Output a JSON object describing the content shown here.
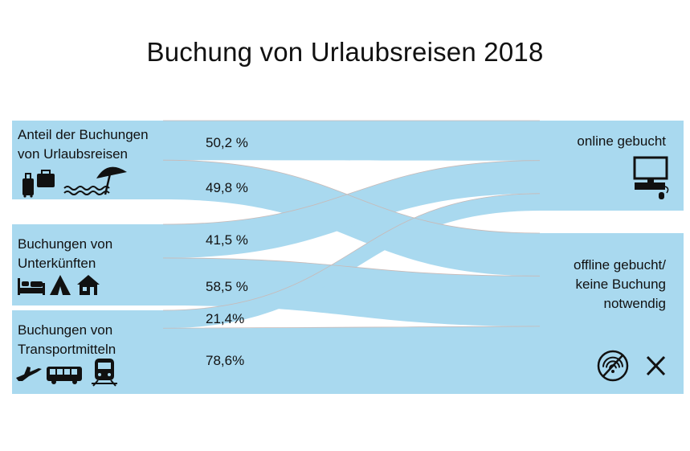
{
  "title": "Buchung von Urlaubsreisen 2018",
  "colors": {
    "flow": "#a9d9ef",
    "seam": "#c9b9b6",
    "text": "#111111"
  },
  "left_nodes": [
    {
      "id": "urlaub",
      "label_lines": [
        "Anteil der Buchungen",
        "von Urlaubsreisen"
      ],
      "icons": [
        "suitcase-icon",
        "luggage-icon",
        "waves-icon",
        "beach-umbrella-icon"
      ]
    },
    {
      "id": "unterkunft",
      "label_lines": [
        "Buchungen von",
        "Unterkünften"
      ],
      "icons": [
        "bed-icon",
        "tent-icon",
        "house-icon"
      ]
    },
    {
      "id": "transport",
      "label_lines": [
        "Buchungen von",
        "Transportmitteln"
      ],
      "icons": [
        "airplane-icon",
        "bus-icon",
        "train-icon"
      ]
    }
  ],
  "right_nodes": [
    {
      "id": "online",
      "label_lines": [
        "online gebucht"
      ],
      "icons": [
        "computer-icon"
      ]
    },
    {
      "id": "offline",
      "label_lines": [
        "offline gebucht/",
        "keine Buchung",
        "notwendig"
      ],
      "icons": [
        "no-wifi-icon",
        "cross-icon"
      ]
    }
  ],
  "flows": [
    {
      "source": "urlaub",
      "target": "online",
      "value": 50.2,
      "label": "50,2 %"
    },
    {
      "source": "urlaub",
      "target": "offline",
      "value": 49.8,
      "label": "49,8 %"
    },
    {
      "source": "unterkunft",
      "target": "online",
      "value": 41.5,
      "label": "41,5 %"
    },
    {
      "source": "unterkunft",
      "target": "offline",
      "value": 58.5,
      "label": "58,5 %"
    },
    {
      "source": "transport",
      "target": "online",
      "value": 21.4,
      "label": "21,4%"
    },
    {
      "source": "transport",
      "target": "offline",
      "value": 78.6,
      "label": "78,6%"
    }
  ]
}
